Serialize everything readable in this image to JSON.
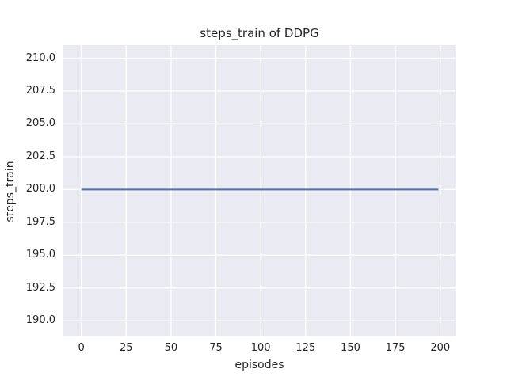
{
  "chart_data": {
    "type": "line",
    "title": "steps_train of DDPG",
    "xlabel": "episodes",
    "ylabel": "steps_train",
    "xlim": [
      -10,
      208.5
    ],
    "ylim": [
      188.8,
      211.0
    ],
    "xticks": {
      "values": [
        0,
        25,
        50,
        75,
        100,
        125,
        150,
        175,
        200
      ],
      "labels": [
        "0",
        "25",
        "50",
        "75",
        "100",
        "125",
        "150",
        "175",
        "200"
      ]
    },
    "yticks": {
      "values": [
        190.0,
        192.5,
        195.0,
        197.5,
        200.0,
        202.5,
        205.0,
        207.5,
        210.0
      ],
      "labels": [
        "190.0",
        "192.5",
        "195.0",
        "197.5",
        "200.0",
        "202.5",
        "205.0",
        "207.5",
        "210.0"
      ]
    },
    "grid": true,
    "legend": false,
    "plot_bg": "#eaeaf2",
    "grid_color": "#ffffff",
    "text_color": "#262626",
    "series": [
      {
        "name": "steps_train",
        "color": "#4c72b0",
        "linewidth": 2,
        "x": [
          0,
          199
        ],
        "y": [
          200,
          200
        ]
      }
    ]
  }
}
